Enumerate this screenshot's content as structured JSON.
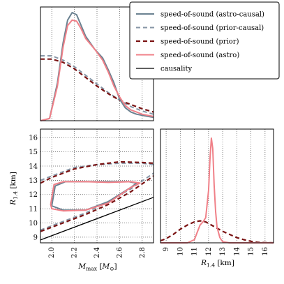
{
  "colors": {
    "astro_causal": "#6b8291",
    "prior_causal": "#8796a6",
    "prior": "#7a1212",
    "astro": "#f08088",
    "causality": "#000000"
  },
  "chart_data": [
    {
      "panel": "top-left",
      "type": "line",
      "xlim": [
        1.9,
        2.9
      ],
      "ylabel": "",
      "series": [
        {
          "key": "astro_causal",
          "x": [
            1.9,
            1.98,
            2.05,
            2.1,
            2.14,
            2.18,
            2.22,
            2.26,
            2.3,
            2.38,
            2.45,
            2.5,
            2.55,
            2.6,
            2.65,
            2.7,
            2.75,
            2.8,
            2.85,
            2.9
          ],
          "values": [
            0,
            0.02,
            0.35,
            0.72,
            0.93,
            1.0,
            0.98,
            0.88,
            0.78,
            0.66,
            0.58,
            0.47,
            0.35,
            0.2,
            0.12,
            0.08,
            0.06,
            0.05,
            0.04,
            0.03
          ]
        },
        {
          "key": "prior_causal",
          "x": [
            1.9,
            2.0,
            2.1,
            2.2,
            2.3,
            2.4,
            2.5,
            2.6,
            2.7,
            2.8,
            2.9
          ],
          "values": [
            0.6,
            0.6,
            0.56,
            0.5,
            0.42,
            0.34,
            0.26,
            0.19,
            0.13,
            0.09,
            0.06
          ]
        },
        {
          "key": "prior",
          "x": [
            1.9,
            2.0,
            2.1,
            2.2,
            2.3,
            2.4,
            2.5,
            2.6,
            2.7,
            2.8,
            2.9
          ],
          "values": [
            0.57,
            0.57,
            0.54,
            0.48,
            0.4,
            0.32,
            0.25,
            0.19,
            0.15,
            0.11,
            0.08
          ]
        },
        {
          "key": "astro",
          "x": [
            1.9,
            1.98,
            2.05,
            2.1,
            2.14,
            2.18,
            2.22,
            2.26,
            2.3,
            2.38,
            2.45,
            2.5,
            2.55,
            2.6,
            2.65,
            2.7,
            2.75,
            2.8,
            2.85,
            2.9
          ],
          "values": [
            0,
            0.02,
            0.32,
            0.68,
            0.88,
            0.93,
            0.92,
            0.85,
            0.76,
            0.66,
            0.56,
            0.45,
            0.32,
            0.22,
            0.14,
            0.1,
            0.08,
            0.06,
            0.05,
            0.04
          ]
        }
      ]
    },
    {
      "panel": "bottom-left",
      "type": "line",
      "xlabel": "M_max [M_⊙]",
      "ylabel": "R_1.4 [km]",
      "xlim": [
        1.9,
        2.9
      ],
      "ylim": [
        8.6,
        16.6
      ],
      "xticks": [
        "2.0",
        "2.2",
        "2.4",
        "2.6",
        "2.8"
      ],
      "yticks": [
        "9",
        "10",
        "11",
        "12",
        "13",
        "14",
        "15",
        "16"
      ],
      "series": [
        {
          "key": "prior_causal",
          "contour": "upper",
          "x": [
            1.9,
            2.0,
            2.2,
            2.4,
            2.6,
            2.8,
            2.9
          ],
          "values": [
            13.0,
            13.3,
            13.9,
            14.1,
            14.2,
            14.2,
            14.1
          ]
        },
        {
          "key": "prior_causal",
          "contour": "lower",
          "x": [
            1.9,
            2.1,
            2.3,
            2.5,
            2.7,
            2.9
          ],
          "values": [
            9.5,
            10.1,
            10.7,
            11.5,
            12.4,
            13.5
          ]
        },
        {
          "key": "prior",
          "contour": "upper",
          "x": [
            1.9,
            2.0,
            2.2,
            2.4,
            2.6,
            2.8,
            2.9
          ],
          "values": [
            12.8,
            13.2,
            13.8,
            14.1,
            14.3,
            14.25,
            14.2
          ]
        },
        {
          "key": "prior",
          "contour": "lower",
          "x": [
            1.9,
            2.1,
            2.3,
            2.5,
            2.7,
            2.9
          ],
          "values": [
            9.4,
            10.0,
            10.6,
            11.3,
            12.2,
            13.3
          ]
        },
        {
          "key": "astro_causal",
          "contour": "closed",
          "x": [
            2.0,
            2.1,
            2.3,
            2.5,
            2.7,
            2.75,
            2.68,
            2.5,
            2.3,
            2.12,
            2.03,
            2.0
          ],
          "values": [
            11.2,
            10.9,
            10.9,
            11.5,
            12.5,
            12.8,
            12.9,
            12.9,
            12.9,
            12.9,
            12.6,
            11.2
          ]
        },
        {
          "key": "astro",
          "contour": "closed",
          "x": [
            1.99,
            2.0,
            2.1,
            2.3,
            2.5,
            2.7,
            2.78,
            2.7,
            2.5,
            2.3,
            2.1,
            2.02,
            1.99
          ],
          "values": [
            11.3,
            11.0,
            10.85,
            10.9,
            11.4,
            12.5,
            12.8,
            12.9,
            12.85,
            12.9,
            12.9,
            12.7,
            11.3
          ]
        },
        {
          "key": "causality",
          "x": [
            1.9,
            2.9
          ],
          "values": [
            8.8,
            11.8
          ]
        }
      ]
    },
    {
      "panel": "bottom-right",
      "type": "line",
      "xlabel": "R_1.4 [km]",
      "xlim": [
        8.6,
        16.6
      ],
      "xticks": [
        "9",
        "10",
        "11",
        "12",
        "13",
        "14",
        "15",
        "16"
      ],
      "series": [
        {
          "key": "prior",
          "x": [
            8.6,
            9.0,
            9.5,
            10.0,
            10.5,
            11.0,
            11.4,
            11.8,
            12.2,
            12.6,
            13.0,
            13.5,
            14.0,
            14.5,
            15.0,
            15.5,
            16.0,
            16.6
          ],
          "values": [
            0.02,
            0.04,
            0.08,
            0.13,
            0.17,
            0.2,
            0.21,
            0.2,
            0.17,
            0.14,
            0.11,
            0.08,
            0.05,
            0.03,
            0.015,
            0.005,
            0.002,
            0
          ]
        },
        {
          "key": "astro",
          "x": [
            8.6,
            10.5,
            11.0,
            11.2,
            11.4,
            11.6,
            11.8,
            12.0,
            12.1,
            12.2,
            12.3,
            12.4,
            12.5,
            12.6,
            12.8,
            13.0,
            13.5,
            16.6
          ],
          "values": [
            0,
            0,
            0.03,
            0.1,
            0.17,
            0.2,
            0.24,
            0.5,
            0.8,
            1.0,
            0.9,
            0.55,
            0.3,
            0.15,
            0.05,
            0.01,
            0,
            0
          ]
        }
      ]
    }
  ],
  "legend": {
    "placement": "top-right",
    "entries": [
      {
        "key": "astro_causal",
        "style": "solid",
        "label": "speed-of-sound (astro-causal)"
      },
      {
        "key": "prior_causal",
        "style": "dashed",
        "label": "speed-of-sound (prior-causal)"
      },
      {
        "key": "prior",
        "style": "dashed",
        "label": "speed-of-sound (prior)"
      },
      {
        "key": "astro",
        "style": "solid",
        "label": "speed-of-sound (astro)"
      },
      {
        "key": "causality",
        "style": "solid",
        "label": "causality"
      }
    ]
  },
  "labels": {
    "bl_xlabel_main": "M",
    "bl_xlabel_sub": "max",
    "bl_xlabel_unit_open": " [",
    "bl_xlabel_unit_main": "M",
    "bl_xlabel_unit_sub": "⊙",
    "bl_xlabel_unit_close": "]",
    "bl_ylabel_main": "R",
    "bl_ylabel_sub": "1.4",
    "bl_ylabel_unit": " [km]",
    "br_xlabel_main": "R",
    "br_xlabel_sub": "1.4",
    "br_xlabel_unit": " [km]"
  }
}
